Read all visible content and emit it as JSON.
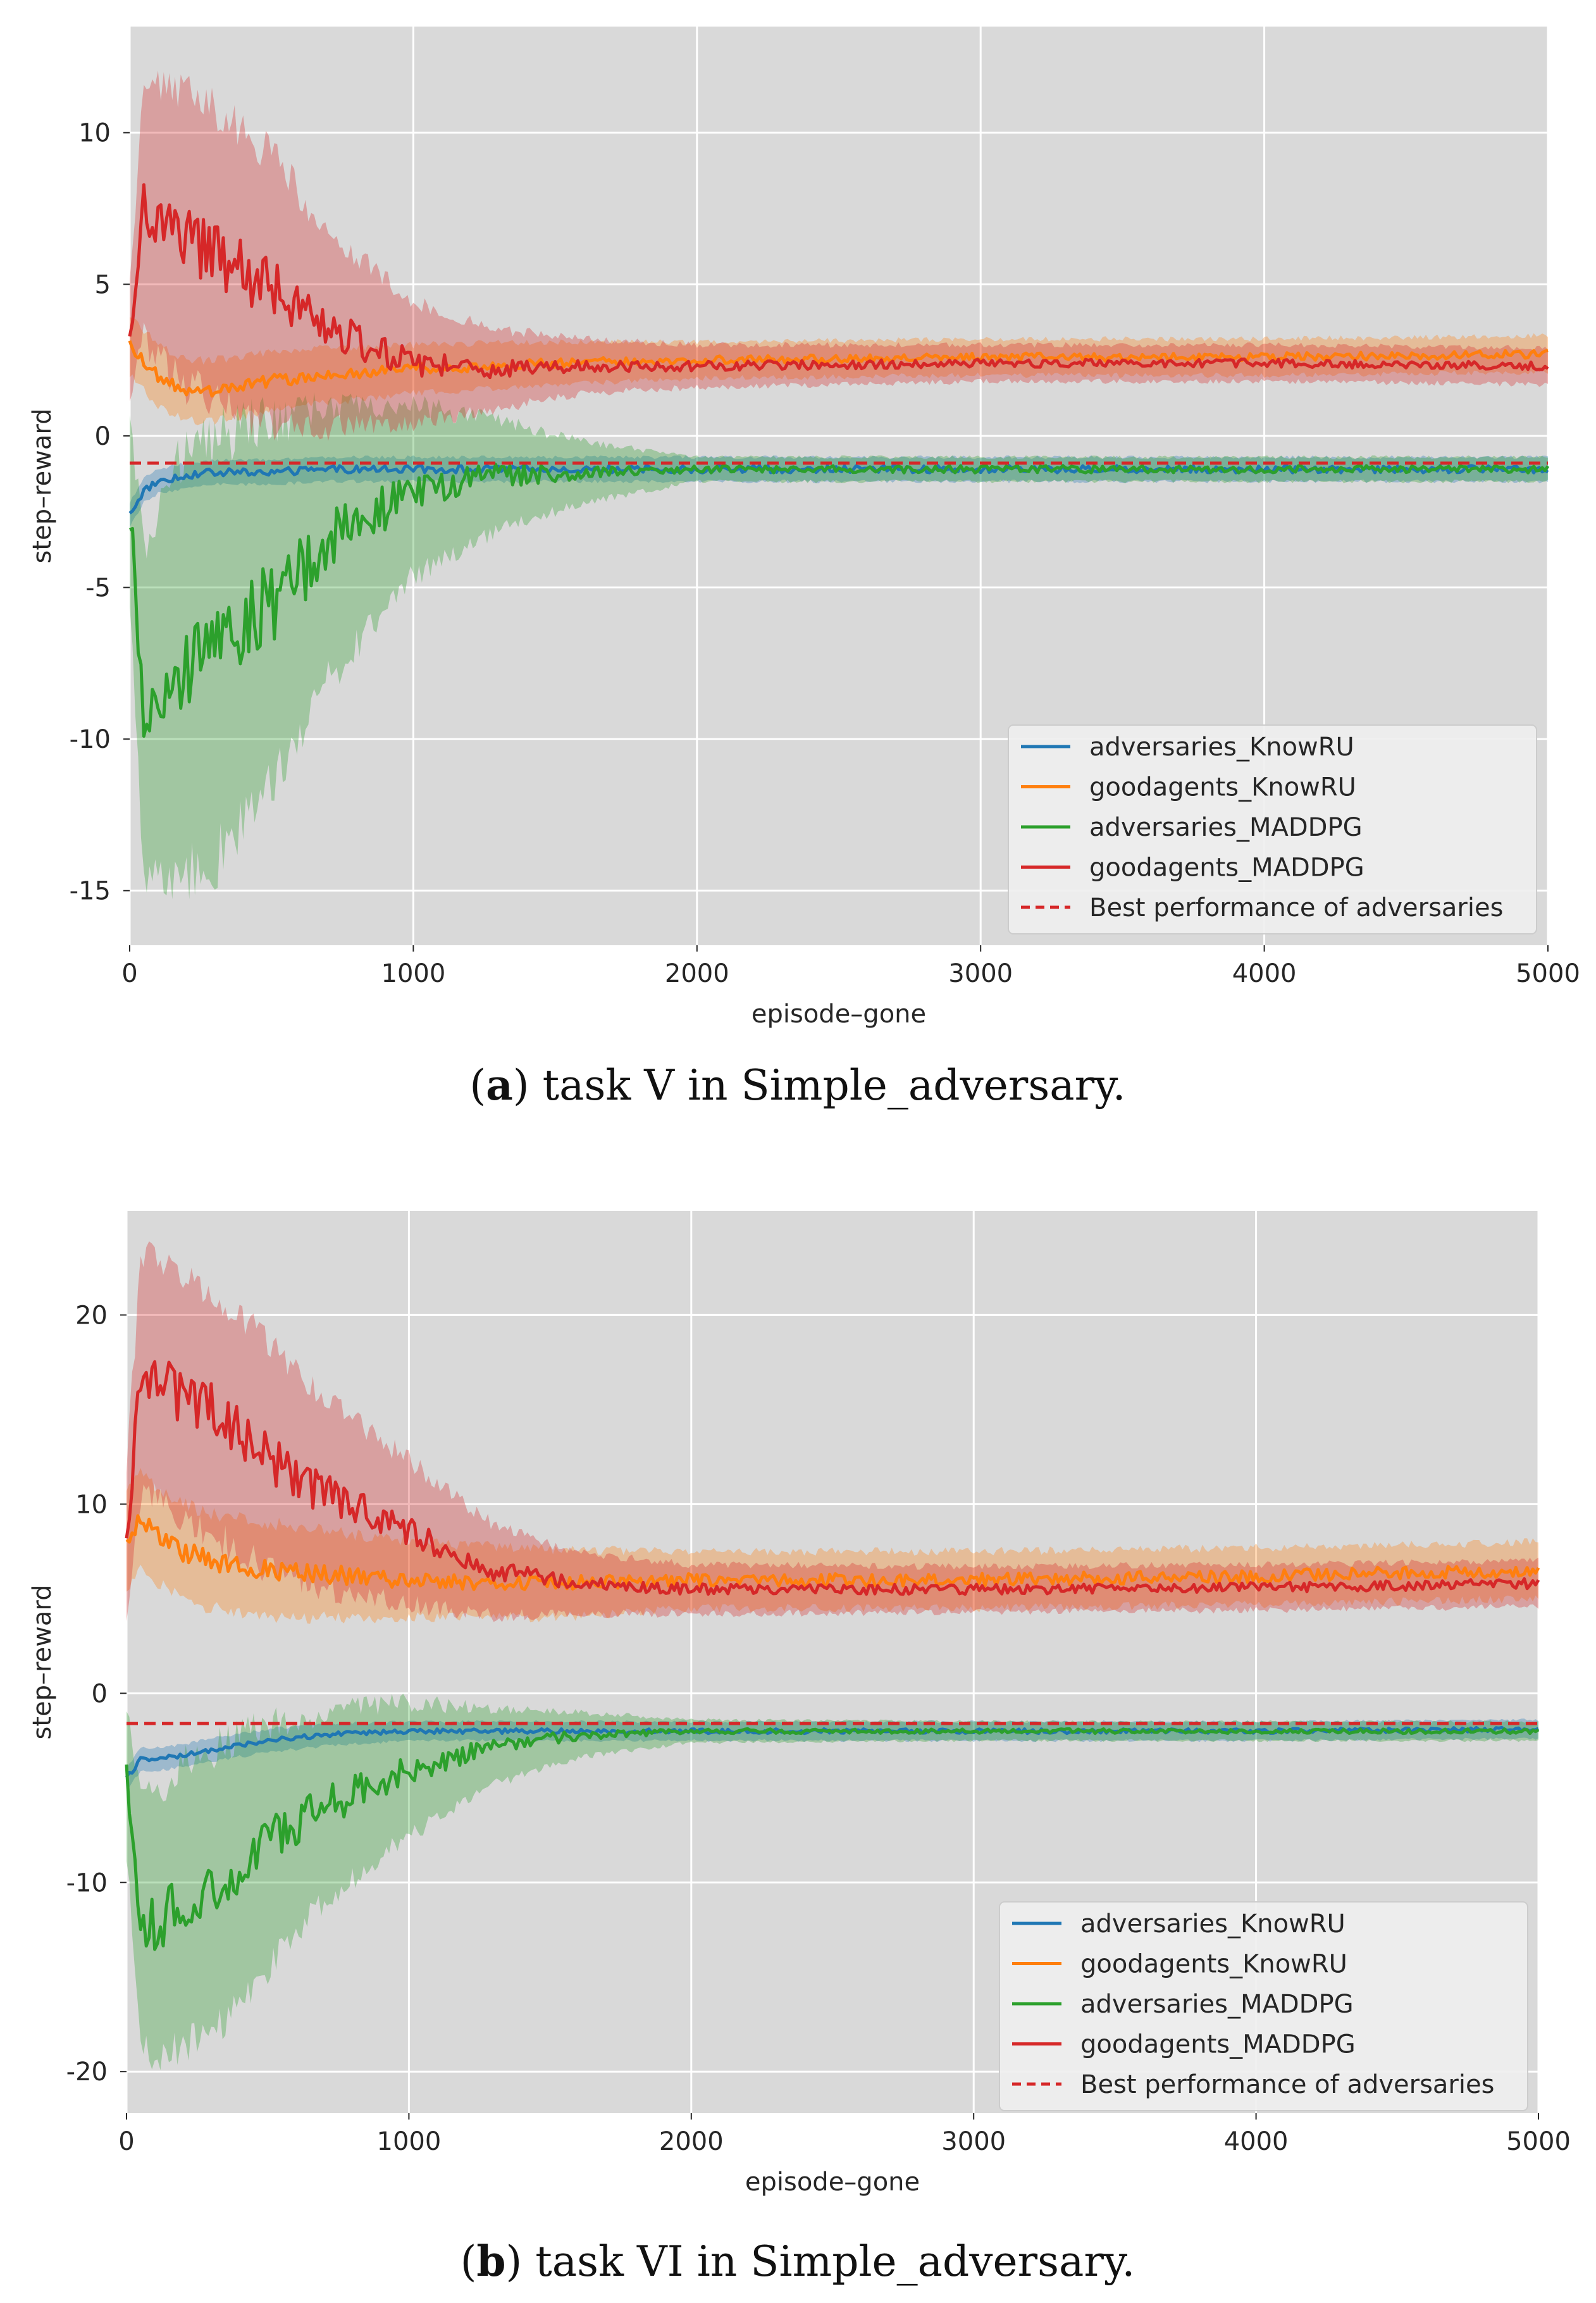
{
  "chart_data": [
    {
      "type": "line",
      "caption_letter": "a",
      "caption_text": "task V in Simple_adversary.",
      "xlabel": "episode–gone",
      "ylabel": "step–reward",
      "xlim": [
        0,
        5000
      ],
      "ylim": [
        -16.8,
        13.5
      ],
      "xticks": [
        0,
        1000,
        2000,
        3000,
        4000,
        5000
      ],
      "xtick_labels": [
        "0",
        "1000",
        "2000",
        "3000",
        "4000",
        "5000"
      ],
      "yticks": [
        10,
        5,
        0,
        -5,
        -10,
        -15
      ],
      "ytick_labels": [
        "10",
        "5",
        "0",
        "-5",
        "-10",
        "-15"
      ],
      "grid": true,
      "legend_location": "lower-right",
      "baseline": {
        "name": "Best performance of adversaries",
        "value": -0.9,
        "color": "#d62728",
        "style": "dashed"
      },
      "series": [
        {
          "name": "adversaries_KnowRU",
          "color": "#1f77b4",
          "x": [
            0,
            50,
            100,
            200,
            300,
            500,
            700,
            1000,
            1500,
            2000,
            3000,
            4000,
            5000
          ],
          "values": [
            -2.6,
            -1.8,
            -1.5,
            -1.3,
            -1.2,
            -1.2,
            -1.1,
            -1.1,
            -1.1,
            -1.1,
            -1.1,
            -1.1,
            -1.1
          ],
          "band": [
            0.4,
            0.4,
            0.4,
            0.4,
            0.4,
            0.4,
            0.4,
            0.4,
            0.4,
            0.4,
            0.4,
            0.4,
            0.4
          ]
        },
        {
          "name": "goodagents_KnowRU",
          "color": "#ff7f0e",
          "x": [
            0,
            50,
            100,
            200,
            300,
            500,
            700,
            1000,
            1500,
            2000,
            3000,
            4000,
            5000
          ],
          "values": [
            3.0,
            2.5,
            2.0,
            1.5,
            1.5,
            1.8,
            2.0,
            2.2,
            2.4,
            2.5,
            2.6,
            2.6,
            2.7
          ],
          "band": [
            1.0,
            1.0,
            1.0,
            1.0,
            1.0,
            1.0,
            0.9,
            0.8,
            0.7,
            0.6,
            0.6,
            0.6,
            0.6
          ]
        },
        {
          "name": "adversaries_MADDPG",
          "color": "#2ca02c",
          "x": [
            0,
            50,
            100,
            200,
            300,
            500,
            700,
            1000,
            1300,
            1600,
            2000,
            3000,
            4000,
            5000
          ],
          "values": [
            -2.5,
            -9.0,
            -8.5,
            -7.5,
            -7.0,
            -5.5,
            -3.5,
            -1.8,
            -1.3,
            -1.2,
            -1.1,
            -1.1,
            -1.1,
            -1.1
          ],
          "band": [
            3.0,
            5.5,
            6.0,
            7.0,
            7.0,
            6.0,
            4.5,
            2.8,
            1.8,
            1.0,
            0.4,
            0.4,
            0.4,
            0.4
          ]
        },
        {
          "name": "goodagents_MADDPG",
          "color": "#d62728",
          "x": [
            0,
            50,
            100,
            200,
            300,
            500,
            700,
            1000,
            1300,
            1600,
            2000,
            3000,
            4000,
            5000
          ],
          "values": [
            3.0,
            7.5,
            7.0,
            6.5,
            6.0,
            4.8,
            3.5,
            2.4,
            2.2,
            2.3,
            2.3,
            2.4,
            2.4,
            2.3
          ],
          "band": [
            2.0,
            4.2,
            4.5,
            4.8,
            4.8,
            4.5,
            3.2,
            2.0,
            1.3,
            0.9,
            0.7,
            0.6,
            0.6,
            0.6
          ]
        }
      ]
    },
    {
      "type": "line",
      "caption_letter": "b",
      "caption_text": "task VI in Simple_adversary.",
      "xlabel": "episode–gone",
      "ylabel": "step–reward",
      "xlim": [
        0,
        5000
      ],
      "ylim": [
        -22.2,
        25.5
      ],
      "xticks": [
        0,
        1000,
        2000,
        3000,
        4000,
        5000
      ],
      "xtick_labels": [
        "0",
        "1000",
        "2000",
        "3000",
        "4000",
        "5000"
      ],
      "yticks": [
        20,
        10,
        0,
        -10,
        -20
      ],
      "ytick_labels": [
        "20",
        "10",
        "0",
        "-10",
        "-20"
      ],
      "grid": true,
      "legend_location": "lower-right",
      "baseline": {
        "name": "Best performance of adversaries",
        "value": -1.6,
        "color": "#d62728",
        "style": "dashed"
      },
      "series": [
        {
          "name": "adversaries_KnowRU",
          "color": "#1f77b4",
          "x": [
            0,
            50,
            100,
            200,
            300,
            500,
            700,
            1000,
            1500,
            2000,
            3000,
            4000,
            5000
          ],
          "values": [
            -4.5,
            -3.5,
            -3.5,
            -3.3,
            -3.0,
            -2.5,
            -2.2,
            -2.0,
            -2.0,
            -2.0,
            -2.0,
            -2.0,
            -1.9
          ],
          "band": [
            0.6,
            0.6,
            0.6,
            0.6,
            0.6,
            0.6,
            0.6,
            0.5,
            0.5,
            0.5,
            0.5,
            0.5,
            0.5
          ]
        },
        {
          "name": "goodagents_KnowRU",
          "color": "#ff7f0e",
          "x": [
            0,
            50,
            100,
            200,
            300,
            500,
            700,
            1000,
            1500,
            2000,
            3000,
            4000,
            5000
          ],
          "values": [
            8.0,
            9.5,
            8.5,
            7.5,
            7.0,
            6.5,
            6.3,
            6.0,
            5.8,
            6.0,
            6.0,
            6.2,
            6.5
          ],
          "band": [
            2.5,
            2.5,
            2.5,
            2.5,
            2.5,
            2.5,
            2.3,
            2.0,
            1.8,
            1.5,
            1.5,
            1.5,
            1.5
          ]
        },
        {
          "name": "adversaries_MADDPG",
          "color": "#2ca02c",
          "x": [
            0,
            50,
            100,
            200,
            300,
            500,
            700,
            1000,
            1300,
            1600,
            2000,
            3000,
            4000,
            5000
          ],
          "values": [
            -4.5,
            -12.0,
            -12.5,
            -11.0,
            -10.5,
            -8.0,
            -6.0,
            -4.0,
            -2.8,
            -2.2,
            -2.0,
            -2.0,
            -2.0,
            -2.0
          ],
          "band": [
            4.0,
            6.5,
            7.0,
            7.5,
            7.5,
            6.5,
            5.0,
            3.5,
            2.0,
            1.2,
            0.6,
            0.5,
            0.5,
            0.5
          ]
        },
        {
          "name": "goodagents_MADDPG",
          "color": "#d62728",
          "x": [
            0,
            50,
            100,
            200,
            300,
            500,
            700,
            1000,
            1300,
            1600,
            2000,
            3000,
            4000,
            5000
          ],
          "values": [
            8.0,
            16.5,
            17.0,
            15.5,
            15.0,
            12.5,
            10.5,
            8.5,
            6.5,
            5.8,
            5.5,
            5.5,
            5.6,
            5.8
          ],
          "band": [
            4.0,
            6.5,
            6.5,
            6.5,
            6.5,
            6.0,
            5.0,
            3.8,
            2.4,
            1.6,
            1.3,
            1.2,
            1.2,
            1.2
          ]
        }
      ]
    }
  ]
}
